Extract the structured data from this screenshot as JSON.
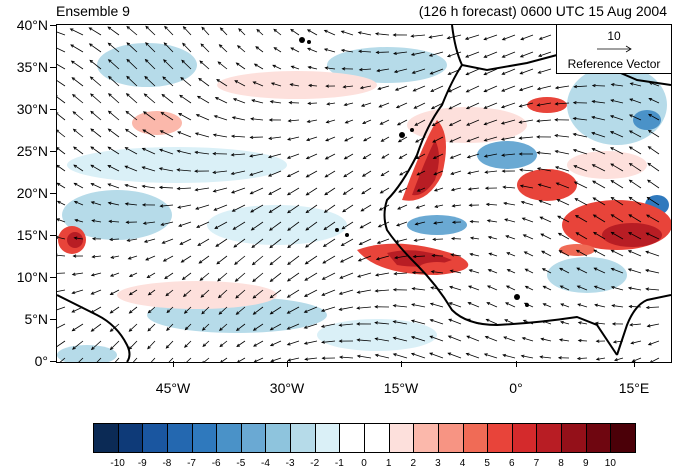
{
  "header": {
    "left_title": "Ensemble 9",
    "right_title": "(126 h forecast) 0600 UTC 15 Aug 2004"
  },
  "reference_vector": {
    "magnitude_label": "10",
    "label": "Reference Vector"
  },
  "map": {
    "lat_labels": [
      "40°N",
      "35°N",
      "30°N",
      "25°N",
      "20°N",
      "15°N",
      "10°N",
      "5°N",
      "0°"
    ],
    "lon_labels": [
      "45°W",
      "30°W",
      "15°W",
      "0°",
      "15°E"
    ],
    "lon_range": [
      -60,
      17
    ],
    "lat_range": [
      0,
      40
    ]
  },
  "colorbar": {
    "labels": [
      "-10",
      "-9",
      "-8",
      "-7",
      "-6",
      "-5",
      "-4",
      "-3",
      "-2",
      "-1",
      "0",
      "1",
      "2",
      "3",
      "4",
      "5",
      "6",
      "7",
      "8",
      "9",
      "10"
    ],
    "colors": [
      "#0b2a55",
      "#0e3a78",
      "#1a56a0",
      "#2468b0",
      "#2f79bd",
      "#4a92c8",
      "#6aa9d3",
      "#8ec4dd",
      "#b6dbe9",
      "#daf0f7",
      "#ffffff",
      "#ffffff",
      "#fde0dc",
      "#fbb8ab",
      "#f79483",
      "#f06b56",
      "#e8443a",
      "#d42a2c",
      "#b81d24",
      "#941019",
      "#6f0610",
      "#4b0008"
    ]
  }
}
